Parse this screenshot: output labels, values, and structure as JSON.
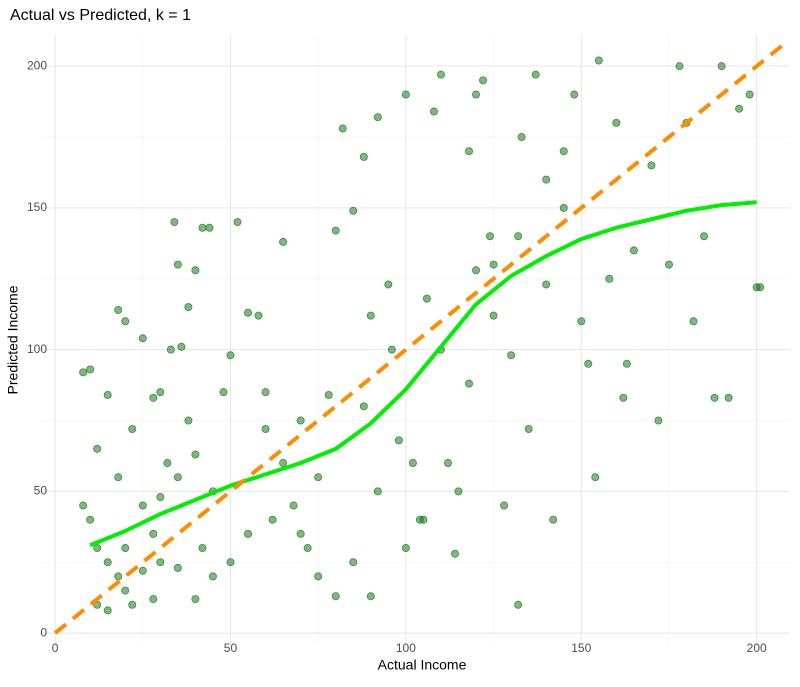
{
  "chart_data": {
    "type": "scatter",
    "title": "Actual vs Predicted, k = 1",
    "x_label": "Actual Income",
    "y_label": "Predicted Income",
    "xlim": [
      -4.3,
      209.5
    ],
    "ylim": [
      -4.2,
      211
    ],
    "xticks": [
      0,
      50,
      100,
      150,
      200
    ],
    "yticks": [
      0,
      50,
      100,
      150,
      200
    ],
    "x_minor_ticks": [
      25,
      75,
      125,
      175
    ],
    "y_minor_ticks": [
      25,
      75,
      125,
      175
    ],
    "grid": true,
    "points": {
      "color": "#1a7a1a",
      "x": [
        8,
        10,
        12,
        15,
        18,
        20,
        22,
        25,
        28,
        30,
        33,
        34,
        35,
        36,
        38,
        40,
        42,
        44,
        8,
        10,
        12,
        15,
        18,
        20,
        22,
        25,
        28,
        30,
        32,
        35,
        38,
        40,
        42,
        45,
        48,
        50,
        52,
        55,
        58,
        60,
        62,
        65,
        68,
        70,
        72,
        75,
        78,
        80,
        82,
        85,
        88,
        90,
        92,
        95,
        96,
        98,
        100,
        102,
        104,
        106,
        108,
        110,
        112,
        114,
        115,
        118,
        120,
        122,
        124,
        125,
        128,
        130,
        132,
        133,
        135,
        137,
        140,
        142,
        145,
        148,
        150,
        152,
        154,
        155,
        158,
        160,
        162,
        165,
        170,
        172,
        175,
        178,
        180,
        182,
        185,
        188,
        190,
        192,
        195,
        198,
        200,
        201,
        60,
        65,
        70,
        75,
        80,
        85,
        90,
        92,
        88,
        45,
        50,
        55,
        25,
        30,
        35,
        40,
        18,
        12,
        15,
        20,
        28,
        100,
        105,
        110,
        120,
        132,
        140,
        145,
        163,
        118,
        125
      ],
      "y": [
        92,
        93,
        65,
        84,
        114,
        110,
        72,
        104,
        83,
        85,
        100,
        145,
        130,
        101,
        115,
        128,
        143,
        143,
        45,
        40,
        30,
        25,
        20,
        15,
        10,
        22,
        35,
        48,
        60,
        55,
        75,
        63,
        30,
        20,
        85,
        98,
        145,
        113,
        112,
        72,
        40,
        138,
        45,
        75,
        30,
        55,
        84,
        142,
        178,
        149,
        168,
        112,
        182,
        123,
        100,
        68,
        190,
        60,
        40,
        118,
        184,
        197,
        60,
        28,
        50,
        170,
        190,
        195,
        140,
        130,
        45,
        98,
        10,
        175,
        72,
        197,
        123,
        40,
        150,
        190,
        110,
        95,
        55,
        202,
        125,
        180,
        83,
        135,
        165,
        75,
        130,
        200,
        180,
        110,
        140,
        83,
        200,
        83,
        185,
        190,
        122,
        122,
        85,
        60,
        35,
        20,
        13,
        25,
        13,
        50,
        80,
        50,
        25,
        35,
        45,
        25,
        23,
        12,
        55,
        10,
        8,
        30,
        12,
        30,
        40,
        100,
        128,
        140,
        160,
        170,
        95,
        88,
        112
      ]
    },
    "smooth": {
      "color": "#00ee00",
      "x": [
        10,
        20,
        30,
        40,
        50,
        60,
        70,
        80,
        90,
        100,
        110,
        120,
        130,
        140,
        150,
        160,
        170,
        180,
        190,
        200
      ],
      "y": [
        31,
        36,
        42,
        47,
        52,
        56,
        60,
        65,
        74,
        86,
        101,
        116,
        126,
        133,
        139,
        143,
        146,
        149,
        151,
        152
      ]
    },
    "reference_line": {
      "color": "#ff8c00",
      "x": [
        0,
        209
      ],
      "y": [
        0,
        209
      ]
    }
  }
}
